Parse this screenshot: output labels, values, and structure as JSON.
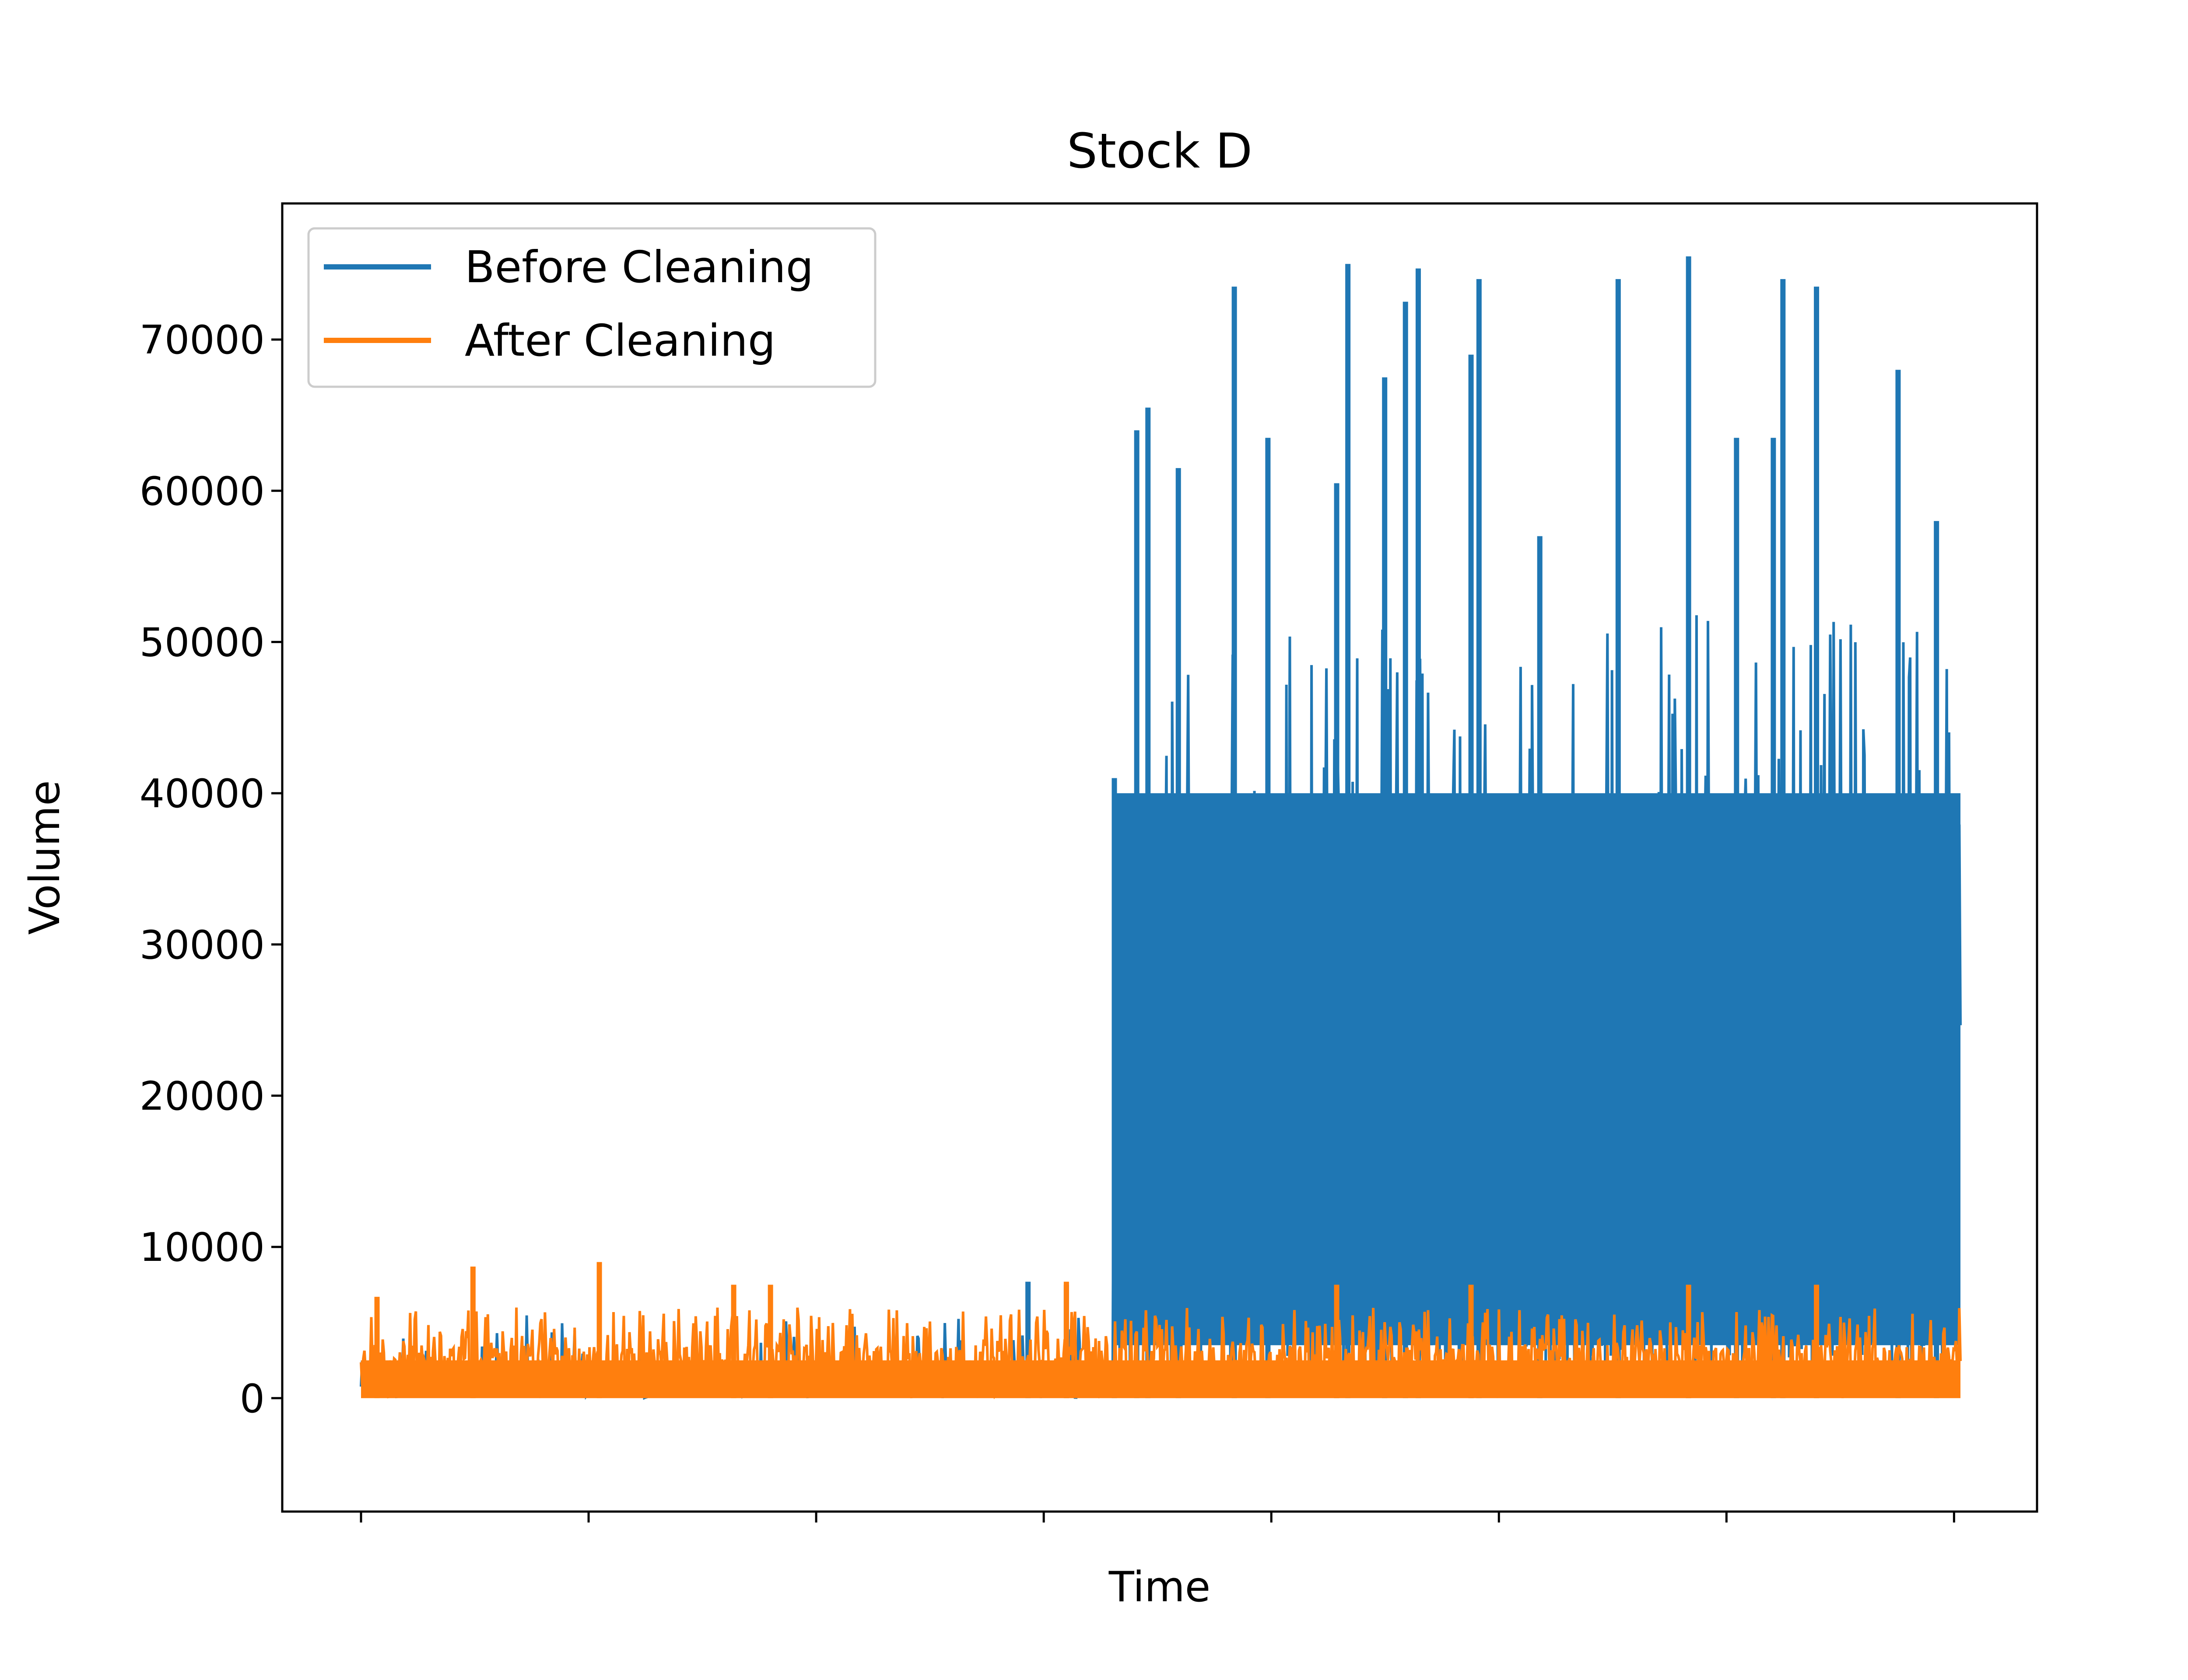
{
  "chart_data": {
    "type": "line",
    "title": "Stock D",
    "xlabel": "Time",
    "ylabel": "Volume",
    "ylim": [
      -7500,
      79000
    ],
    "yticks": [
      0,
      10000,
      20000,
      30000,
      40000,
      50000,
      60000,
      70000
    ],
    "ytick_labels": [
      "0",
      "10000",
      "20000",
      "30000",
      "40000",
      "50000",
      "60000",
      "70000"
    ],
    "xticks_shown": 8,
    "xtick_labels": [],
    "legend": {
      "position": "upper-left",
      "entries": [
        "Before Cleaning",
        "After Cleaning"
      ]
    },
    "grid": false,
    "colors": {
      "before": "#1f77b4",
      "after": "#ff7f0e"
    },
    "series": [
      {
        "name": "Before Cleaning",
        "segments": [
          {
            "x_range": [
              0,
              0.47
            ],
            "level": "same as After Cleaning",
            "spikes": [
              {
                "x": 0.417,
                "y": 7700
              },
              {
                "x": 0.441,
                "y": 7500
              }
            ]
          },
          {
            "x_range": [
              0.47,
              1.0
            ],
            "typical_max": 40000,
            "peaks": [
              {
                "x": 0.471,
                "y": 41000
              },
              {
                "x": 0.485,
                "y": 64000
              },
              {
                "x": 0.492,
                "y": 65500
              },
              {
                "x": 0.511,
                "y": 61500
              },
              {
                "x": 0.546,
                "y": 73500
              },
              {
                "x": 0.567,
                "y": 63500
              },
              {
                "x": 0.61,
                "y": 60500
              },
              {
                "x": 0.617,
                "y": 75000
              },
              {
                "x": 0.64,
                "y": 67500
              },
              {
                "x": 0.653,
                "y": 72500
              },
              {
                "x": 0.661,
                "y": 74700
              },
              {
                "x": 0.694,
                "y": 69000
              },
              {
                "x": 0.699,
                "y": 74000
              },
              {
                "x": 0.737,
                "y": 57000
              },
              {
                "x": 0.786,
                "y": 74000
              },
              {
                "x": 0.83,
                "y": 75500
              },
              {
                "x": 0.86,
                "y": 63500
              },
              {
                "x": 0.883,
                "y": 63500
              },
              {
                "x": 0.889,
                "y": 74000
              },
              {
                "x": 0.91,
                "y": 73500
              },
              {
                "x": 0.961,
                "y": 68000
              },
              {
                "x": 0.985,
                "y": 58000
              }
            ]
          }
        ]
      },
      {
        "name": "After Cleaning",
        "typical_range": [
          0,
          5000
        ],
        "peaks": [
          {
            "x": 0.01,
            "y": 6700
          },
          {
            "x": 0.07,
            "y": 8700
          },
          {
            "x": 0.149,
            "y": 9000
          },
          {
            "x": 0.233,
            "y": 7500
          },
          {
            "x": 0.256,
            "y": 7500
          },
          {
            "x": 0.441,
            "y": 7700
          },
          {
            "x": 0.61,
            "y": 7500
          },
          {
            "x": 0.694,
            "y": 7500
          },
          {
            "x": 0.83,
            "y": 7500
          },
          {
            "x": 0.91,
            "y": 7500
          }
        ]
      }
    ]
  }
}
